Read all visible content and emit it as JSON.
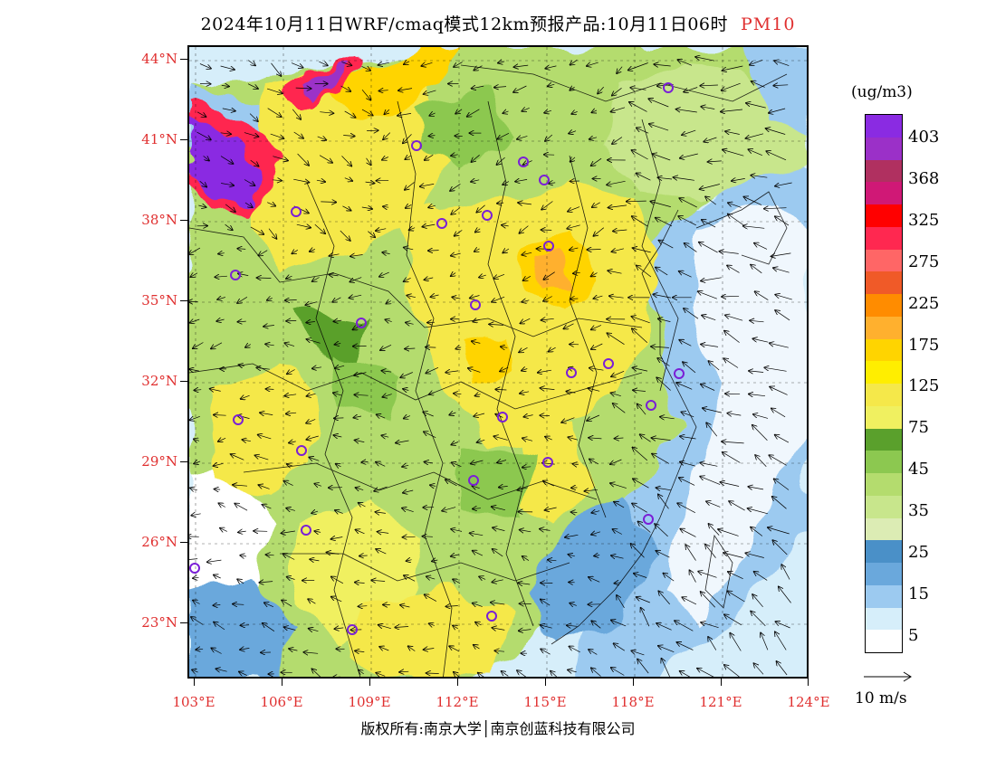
{
  "header": {
    "title": "2024年10月11日WRF/cmaq模式12km预报产品:10月11日06时",
    "product": "PM10"
  },
  "map": {
    "lat_labels": [
      "44°N",
      "41°N",
      "38°N",
      "35°N",
      "32°N",
      "29°N",
      "26°N",
      "23°N"
    ],
    "lon_labels": [
      "103°E",
      "106°E",
      "109°E",
      "112°E",
      "115°E",
      "118°E",
      "121°E",
      "124°E"
    ],
    "lat_range": [
      21.0,
      44.8
    ],
    "lon_range": [
      102.8,
      124.0
    ],
    "city_marker_color": "#7a1fd6"
  },
  "legend": {
    "unit": "(ug/m3)",
    "labels": [
      "403",
      "368",
      "325",
      "275",
      "225",
      "175",
      "125",
      "75",
      "45",
      "35",
      "25",
      "15",
      "5"
    ],
    "colors": [
      "#8a2be2",
      "#9b30c8",
      "#b03060",
      "#d01876",
      "#ff0000",
      "#ff2850",
      "#ff6666",
      "#f05a28",
      "#ff8c00",
      "#ffb02e",
      "#ffd400",
      "#ffee00",
      "#f5e84a",
      "#f0f060",
      "#5aa02c",
      "#8cc850",
      "#b4dc6e",
      "#c8e68c",
      "#dcecb4",
      "#4a90c8",
      "#6aa8dc",
      "#9ccaf0",
      "#d6eefa",
      "#ffffff"
    ]
  },
  "wind": {
    "reference": "10 m/s"
  },
  "footer": {
    "copyright": "版权所有:南京大学│南京创蓝科技有限公司"
  }
}
